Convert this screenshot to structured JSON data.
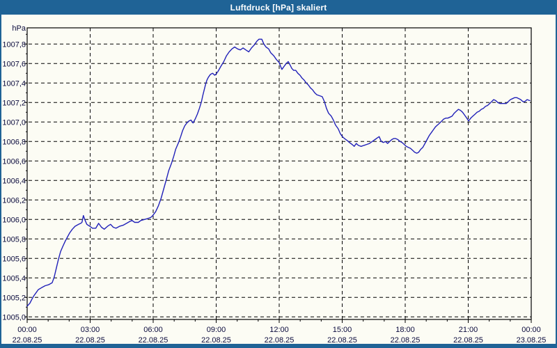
{
  "window": {
    "title": "Luftdruck [hPa] skaliert",
    "colors": {
      "titlebar": "#1f6396",
      "border": "#1f6396",
      "content_bg": "#fcfcf4"
    }
  },
  "chart_data": {
    "type": "line",
    "title": "Luftdruck [hPa] skaliert",
    "unit_label": "hPa",
    "xlabel": "",
    "ylabel": "hPa",
    "grid": "dashed",
    "legend": "none",
    "line_color": "#2020b8",
    "grid_color": "#000000",
    "axis_color": "#000000",
    "label_color": "#0a0a3c",
    "xlim_hours": [
      0,
      24
    ],
    "ylim": [
      1004.97,
      1007.97
    ],
    "y_ticks": [
      {
        "v": 1005.0,
        "label": "1005,0"
      },
      {
        "v": 1005.2,
        "label": "1005,2"
      },
      {
        "v": 1005.4,
        "label": "1005,4"
      },
      {
        "v": 1005.6,
        "label": "1005,6"
      },
      {
        "v": 1005.8,
        "label": "1005,8"
      },
      {
        "v": 1006.0,
        "label": "1006,0"
      },
      {
        "v": 1006.2,
        "label": "1006,2"
      },
      {
        "v": 1006.4,
        "label": "1006,4"
      },
      {
        "v": 1006.6,
        "label": "1006,6"
      },
      {
        "v": 1006.8,
        "label": "1006,8"
      },
      {
        "v": 1007.0,
        "label": "1007,0"
      },
      {
        "v": 1007.2,
        "label": "1007,2"
      },
      {
        "v": 1007.4,
        "label": "1007,4"
      },
      {
        "v": 1007.6,
        "label": "1007,6"
      },
      {
        "v": 1007.8,
        "label": "1007,8"
      }
    ],
    "x_ticks": [
      {
        "t": 0,
        "time": "00:00",
        "date": "22.08.25"
      },
      {
        "t": 3,
        "time": "03:00",
        "date": "22.08.25"
      },
      {
        "t": 6,
        "time": "06:00",
        "date": "22.08.25"
      },
      {
        "t": 9,
        "time": "09:00",
        "date": "22.08.25"
      },
      {
        "t": 12,
        "time": "12:00",
        "date": "22.08.25"
      },
      {
        "t": 15,
        "time": "15:00",
        "date": "22.08.25"
      },
      {
        "t": 18,
        "time": "18:00",
        "date": "22.08.25"
      },
      {
        "t": 21,
        "time": "21:00",
        "date": "22.08.25"
      },
      {
        "t": 24,
        "time": "00:00",
        "date": "23.08.25"
      }
    ],
    "series": [
      {
        "name": "Luftdruck",
        "points": [
          [
            0.0,
            1005.11
          ],
          [
            0.13,
            1005.14
          ],
          [
            0.2,
            1005.17
          ],
          [
            0.3,
            1005.21
          ],
          [
            0.43,
            1005.25
          ],
          [
            0.53,
            1005.28
          ],
          [
            0.69,
            1005.3
          ],
          [
            0.86,
            1005.32
          ],
          [
            1.02,
            1005.33
          ],
          [
            1.19,
            1005.35
          ],
          [
            1.29,
            1005.41
          ],
          [
            1.39,
            1005.5
          ],
          [
            1.49,
            1005.59
          ],
          [
            1.59,
            1005.67
          ],
          [
            1.69,
            1005.72
          ],
          [
            1.82,
            1005.78
          ],
          [
            1.92,
            1005.82
          ],
          [
            2.02,
            1005.86
          ],
          [
            2.15,
            1005.9
          ],
          [
            2.28,
            1005.93
          ],
          [
            2.45,
            1005.95
          ],
          [
            2.55,
            1005.96
          ],
          [
            2.61,
            1005.97
          ],
          [
            2.68,
            1006.04
          ],
          [
            2.74,
            1006.0
          ],
          [
            2.84,
            1005.95
          ],
          [
            2.98,
            1005.93
          ],
          [
            3.11,
            1005.91
          ],
          [
            3.27,
            1005.91
          ],
          [
            3.4,
            1005.96
          ],
          [
            3.54,
            1005.92
          ],
          [
            3.67,
            1005.9
          ],
          [
            3.83,
            1005.93
          ],
          [
            3.97,
            1005.95
          ],
          [
            4.1,
            1005.92
          ],
          [
            4.23,
            1005.91
          ],
          [
            4.4,
            1005.93
          ],
          [
            4.56,
            1005.94
          ],
          [
            4.73,
            1005.96
          ],
          [
            4.89,
            1005.98
          ],
          [
            4.99,
            1005.99
          ],
          [
            5.12,
            1005.97
          ],
          [
            5.29,
            1005.97
          ],
          [
            5.42,
            1005.99
          ],
          [
            5.59,
            1006.0
          ],
          [
            5.75,
            1006.01
          ],
          [
            5.88,
            1006.02
          ],
          [
            5.98,
            1006.04
          ],
          [
            6.12,
            1006.08
          ],
          [
            6.25,
            1006.14
          ],
          [
            6.38,
            1006.22
          ],
          [
            6.51,
            1006.32
          ],
          [
            6.64,
            1006.42
          ],
          [
            6.74,
            1006.5
          ],
          [
            6.88,
            1006.58
          ],
          [
            6.98,
            1006.65
          ],
          [
            7.07,
            1006.72
          ],
          [
            7.21,
            1006.79
          ],
          [
            7.31,
            1006.85
          ],
          [
            7.4,
            1006.91
          ],
          [
            7.5,
            1006.96
          ],
          [
            7.6,
            1006.99
          ],
          [
            7.7,
            1007.01
          ],
          [
            7.8,
            1007.02
          ],
          [
            7.9,
            1006.99
          ],
          [
            8.0,
            1007.03
          ],
          [
            8.1,
            1007.08
          ],
          [
            8.2,
            1007.14
          ],
          [
            8.3,
            1007.21
          ],
          [
            8.36,
            1007.27
          ],
          [
            8.43,
            1007.33
          ],
          [
            8.5,
            1007.39
          ],
          [
            8.56,
            1007.43
          ],
          [
            8.63,
            1007.46
          ],
          [
            8.73,
            1007.49
          ],
          [
            8.83,
            1007.5
          ],
          [
            8.93,
            1007.48
          ],
          [
            8.99,
            1007.49
          ],
          [
            9.09,
            1007.52
          ],
          [
            9.22,
            1007.57
          ],
          [
            9.36,
            1007.62
          ],
          [
            9.49,
            1007.68
          ],
          [
            9.62,
            1007.72
          ],
          [
            9.75,
            1007.75
          ],
          [
            9.88,
            1007.77
          ],
          [
            10.02,
            1007.75
          ],
          [
            10.15,
            1007.74
          ],
          [
            10.28,
            1007.76
          ],
          [
            10.41,
            1007.74
          ],
          [
            10.55,
            1007.72
          ],
          [
            10.68,
            1007.76
          ],
          [
            10.81,
            1007.79
          ],
          [
            10.94,
            1007.83
          ],
          [
            11.04,
            1007.85
          ],
          [
            11.17,
            1007.85
          ],
          [
            11.27,
            1007.8
          ],
          [
            11.37,
            1007.77
          ],
          [
            11.5,
            1007.75
          ],
          [
            11.6,
            1007.71
          ],
          [
            11.74,
            1007.68
          ],
          [
            11.87,
            1007.64
          ],
          [
            12.0,
            1007.61
          ],
          [
            12.07,
            1007.57
          ],
          [
            12.13,
            1007.54
          ],
          [
            12.23,
            1007.57
          ],
          [
            12.33,
            1007.6
          ],
          [
            12.43,
            1007.62
          ],
          [
            12.53,
            1007.58
          ],
          [
            12.6,
            1007.55
          ],
          [
            12.69,
            1007.53
          ],
          [
            12.79,
            1007.53
          ],
          [
            12.89,
            1007.5
          ],
          [
            12.99,
            1007.48
          ],
          [
            13.09,
            1007.45
          ],
          [
            13.19,
            1007.43
          ],
          [
            13.29,
            1007.4
          ],
          [
            13.39,
            1007.38
          ],
          [
            13.49,
            1007.35
          ],
          [
            13.59,
            1007.33
          ],
          [
            13.69,
            1007.3
          ],
          [
            13.79,
            1007.28
          ],
          [
            13.92,
            1007.27
          ],
          [
            14.05,
            1007.26
          ],
          [
            14.15,
            1007.21
          ],
          [
            14.25,
            1007.14
          ],
          [
            14.35,
            1007.09
          ],
          [
            14.48,
            1007.06
          ],
          [
            14.58,
            1007.02
          ],
          [
            14.68,
            1006.97
          ],
          [
            14.81,
            1006.93
          ],
          [
            14.91,
            1006.88
          ],
          [
            15.01,
            1006.85
          ],
          [
            15.11,
            1006.83
          ],
          [
            15.24,
            1006.81
          ],
          [
            15.34,
            1006.79
          ],
          [
            15.47,
            1006.77
          ],
          [
            15.57,
            1006.75
          ],
          [
            15.67,
            1006.78
          ],
          [
            15.77,
            1006.76
          ],
          [
            15.9,
            1006.75
          ],
          [
            16.03,
            1006.76
          ],
          [
            16.17,
            1006.77
          ],
          [
            16.3,
            1006.78
          ],
          [
            16.43,
            1006.8
          ],
          [
            16.56,
            1006.82
          ],
          [
            16.69,
            1006.84
          ],
          [
            16.76,
            1006.85
          ],
          [
            16.86,
            1006.8
          ],
          [
            16.96,
            1006.79
          ],
          [
            17.06,
            1006.8
          ],
          [
            17.16,
            1006.78
          ],
          [
            17.26,
            1006.8
          ],
          [
            17.36,
            1006.82
          ],
          [
            17.45,
            1006.83
          ],
          [
            17.55,
            1006.83
          ],
          [
            17.65,
            1006.82
          ],
          [
            17.75,
            1006.8
          ],
          [
            17.85,
            1006.79
          ],
          [
            17.95,
            1006.77
          ],
          [
            18.05,
            1006.75
          ],
          [
            18.15,
            1006.74
          ],
          [
            18.25,
            1006.73
          ],
          [
            18.35,
            1006.71
          ],
          [
            18.45,
            1006.69
          ],
          [
            18.55,
            1006.68
          ],
          [
            18.64,
            1006.69
          ],
          [
            18.74,
            1006.72
          ],
          [
            18.84,
            1006.74
          ],
          [
            18.94,
            1006.78
          ],
          [
            19.04,
            1006.82
          ],
          [
            19.14,
            1006.86
          ],
          [
            19.24,
            1006.89
          ],
          [
            19.34,
            1006.92
          ],
          [
            19.44,
            1006.95
          ],
          [
            19.54,
            1006.97
          ],
          [
            19.64,
            1006.99
          ],
          [
            19.74,
            1007.01
          ],
          [
            19.83,
            1007.03
          ],
          [
            19.93,
            1007.04
          ],
          [
            20.03,
            1007.04
          ],
          [
            20.13,
            1007.05
          ],
          [
            20.23,
            1007.06
          ],
          [
            20.33,
            1007.09
          ],
          [
            20.43,
            1007.11
          ],
          [
            20.53,
            1007.13
          ],
          [
            20.63,
            1007.12
          ],
          [
            20.73,
            1007.1
          ],
          [
            20.83,
            1007.07
          ],
          [
            20.93,
            1007.04
          ],
          [
            21.02,
            1007.01
          ],
          [
            21.12,
            1007.04
          ],
          [
            21.22,
            1007.06
          ],
          [
            21.32,
            1007.08
          ],
          [
            21.42,
            1007.1
          ],
          [
            21.52,
            1007.11
          ],
          [
            21.62,
            1007.13
          ],
          [
            21.72,
            1007.14
          ],
          [
            21.82,
            1007.16
          ],
          [
            21.92,
            1007.17
          ],
          [
            22.02,
            1007.19
          ],
          [
            22.12,
            1007.21
          ],
          [
            22.21,
            1007.23
          ],
          [
            22.31,
            1007.22
          ],
          [
            22.41,
            1007.2
          ],
          [
            22.51,
            1007.19
          ],
          [
            22.61,
            1007.19
          ],
          [
            22.71,
            1007.19
          ],
          [
            22.81,
            1007.19
          ],
          [
            22.91,
            1007.21
          ],
          [
            23.01,
            1007.23
          ],
          [
            23.11,
            1007.24
          ],
          [
            23.21,
            1007.25
          ],
          [
            23.31,
            1007.25
          ],
          [
            23.41,
            1007.24
          ],
          [
            23.5,
            1007.23
          ],
          [
            23.6,
            1007.21
          ],
          [
            23.7,
            1007.21
          ],
          [
            23.8,
            1007.23
          ],
          [
            23.93,
            1007.22
          ]
        ]
      }
    ]
  }
}
